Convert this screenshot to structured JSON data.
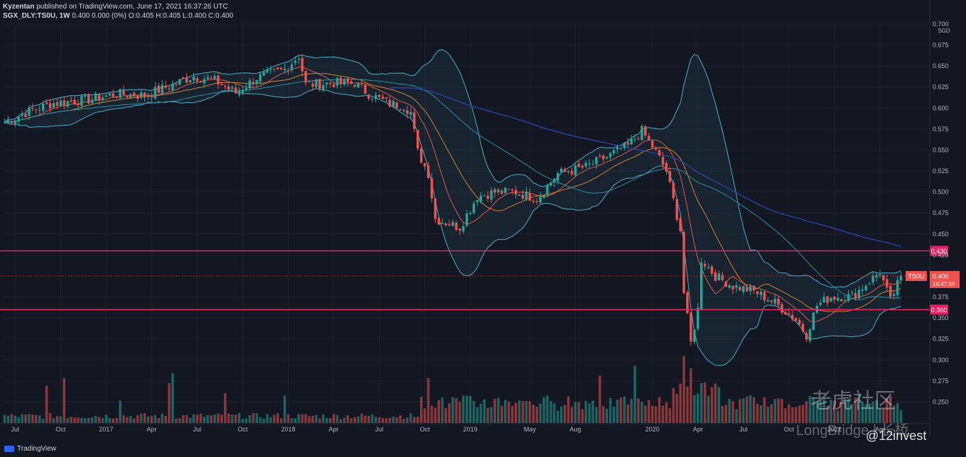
{
  "header": {
    "author": "Kyzentan",
    "published": "published on TradingView.com, June 17, 2021 16:37:26 UTC",
    "symbol": "SGX_DLY:TS0U, 1W",
    "quote": "0.400 0.000 (0%) O:0.405 H:0.405 L:0.400 C:0.400"
  },
  "footer": {
    "brand": "TradingView"
  },
  "watermark": {
    "cn": "老虎社区",
    "lb": "LongBridge",
    "lbcn": "长桥",
    "handle": "@12invest"
  },
  "chart_data": {
    "type": "candlestick",
    "currency": "SGD",
    "ylim": [
      0.225,
      0.7
    ],
    "yticks": [
      0.7,
      0.675,
      0.65,
      0.625,
      0.6,
      0.575,
      0.55,
      0.525,
      0.5,
      0.475,
      0.45,
      0.425,
      0.375,
      0.35,
      0.325,
      0.3,
      0.275,
      0.25
    ],
    "xticks": [
      {
        "label": "Jul",
        "i": 3
      },
      {
        "label": "Oct",
        "i": 16
      },
      {
        "label": "2017",
        "i": 29
      },
      {
        "label": "Apr",
        "i": 42
      },
      {
        "label": "Jul",
        "i": 55
      },
      {
        "label": "Oct",
        "i": 68
      },
      {
        "label": "2018",
        "i": 81
      },
      {
        "label": "Apr",
        "i": 94
      },
      {
        "label": "Jul",
        "i": 107
      },
      {
        "label": "Oct",
        "i": 120
      },
      {
        "label": "2019",
        "i": 133
      },
      {
        "label": "May",
        "i": 150
      },
      {
        "label": "Aug",
        "i": 163
      },
      {
        "label": "2020",
        "i": 185
      },
      {
        "label": "Apr",
        "i": 198
      },
      {
        "label": "Jul",
        "i": 211
      },
      {
        "label": "Oct",
        "i": 224
      },
      {
        "label": "2021",
        "i": 237
      },
      {
        "label": "Apr",
        "i": 250
      }
    ],
    "levels": [
      {
        "value": 0.43,
        "label": "0.430",
        "color": "#e91e63"
      },
      {
        "value": 0.36,
        "label": "0.360",
        "color": "#e91e63"
      }
    ],
    "last": {
      "symbol": "TS0U",
      "value": 0.4,
      "label": "0.400",
      "countdown": "16:47:34"
    },
    "colors": {
      "up": "#26a69a",
      "down": "#ef5350",
      "ma_fast": "#e05a4a",
      "ma_mid": "#d9822b",
      "ma_slow": "#2a8fa3",
      "ma_long": "#2b3fa0",
      "bb": "#4ab0c8"
    },
    "anchors": [
      [
        0,
        0.583
      ],
      [
        8,
        0.598
      ],
      [
        14,
        0.606
      ],
      [
        24,
        0.61
      ],
      [
        32,
        0.617
      ],
      [
        40,
        0.615
      ],
      [
        48,
        0.628
      ],
      [
        54,
        0.638
      ],
      [
        60,
        0.633
      ],
      [
        66,
        0.618
      ],
      [
        72,
        0.636
      ],
      [
        80,
        0.646
      ],
      [
        84,
        0.662
      ],
      [
        86,
        0.628
      ],
      [
        94,
        0.63
      ],
      [
        100,
        0.63
      ],
      [
        104,
        0.617
      ],
      [
        110,
        0.605
      ],
      [
        114,
        0.603
      ],
      [
        116,
        0.595
      ],
      [
        118,
        0.548
      ],
      [
        121,
        0.522
      ],
      [
        123,
        0.468
      ],
      [
        130,
        0.458
      ],
      [
        135,
        0.495
      ],
      [
        140,
        0.5
      ],
      [
        146,
        0.5
      ],
      [
        152,
        0.492
      ],
      [
        158,
        0.522
      ],
      [
        166,
        0.53
      ],
      [
        172,
        0.542
      ],
      [
        178,
        0.555
      ],
      [
        182,
        0.573
      ],
      [
        186,
        0.548
      ],
      [
        189,
        0.525
      ],
      [
        191,
        0.49
      ],
      [
        193,
        0.455
      ],
      [
        194,
        0.38
      ],
      [
        196,
        0.32
      ],
      [
        198,
        0.36
      ],
      [
        199,
        0.42
      ],
      [
        203,
        0.4
      ],
      [
        208,
        0.388
      ],
      [
        214,
        0.382
      ],
      [
        220,
        0.368
      ],
      [
        226,
        0.348
      ],
      [
        229,
        0.33
      ],
      [
        232,
        0.365
      ],
      [
        236,
        0.375
      ],
      [
        242,
        0.376
      ],
      [
        246,
        0.39
      ],
      [
        250,
        0.405
      ],
      [
        253,
        0.37
      ],
      [
        256,
        0.4
      ]
    ],
    "volume_spikes": [
      {
        "i": 12,
        "v": 0.75
      },
      {
        "i": 17,
        "v": 0.9
      },
      {
        "i": 33,
        "v": 0.45
      },
      {
        "i": 47,
        "v": 0.8
      },
      {
        "i": 48,
        "v": 1.0
      },
      {
        "i": 63,
        "v": 0.6
      },
      {
        "i": 80,
        "v": 0.55
      },
      {
        "i": 121,
        "v": 0.9
      },
      {
        "i": 131,
        "v": 0.55
      },
      {
        "i": 170,
        "v": 0.95
      },
      {
        "i": 180,
        "v": 1.15
      },
      {
        "i": 194,
        "v": 1.35
      },
      {
        "i": 196,
        "v": 1.1
      },
      {
        "i": 199,
        "v": 0.8
      }
    ]
  }
}
